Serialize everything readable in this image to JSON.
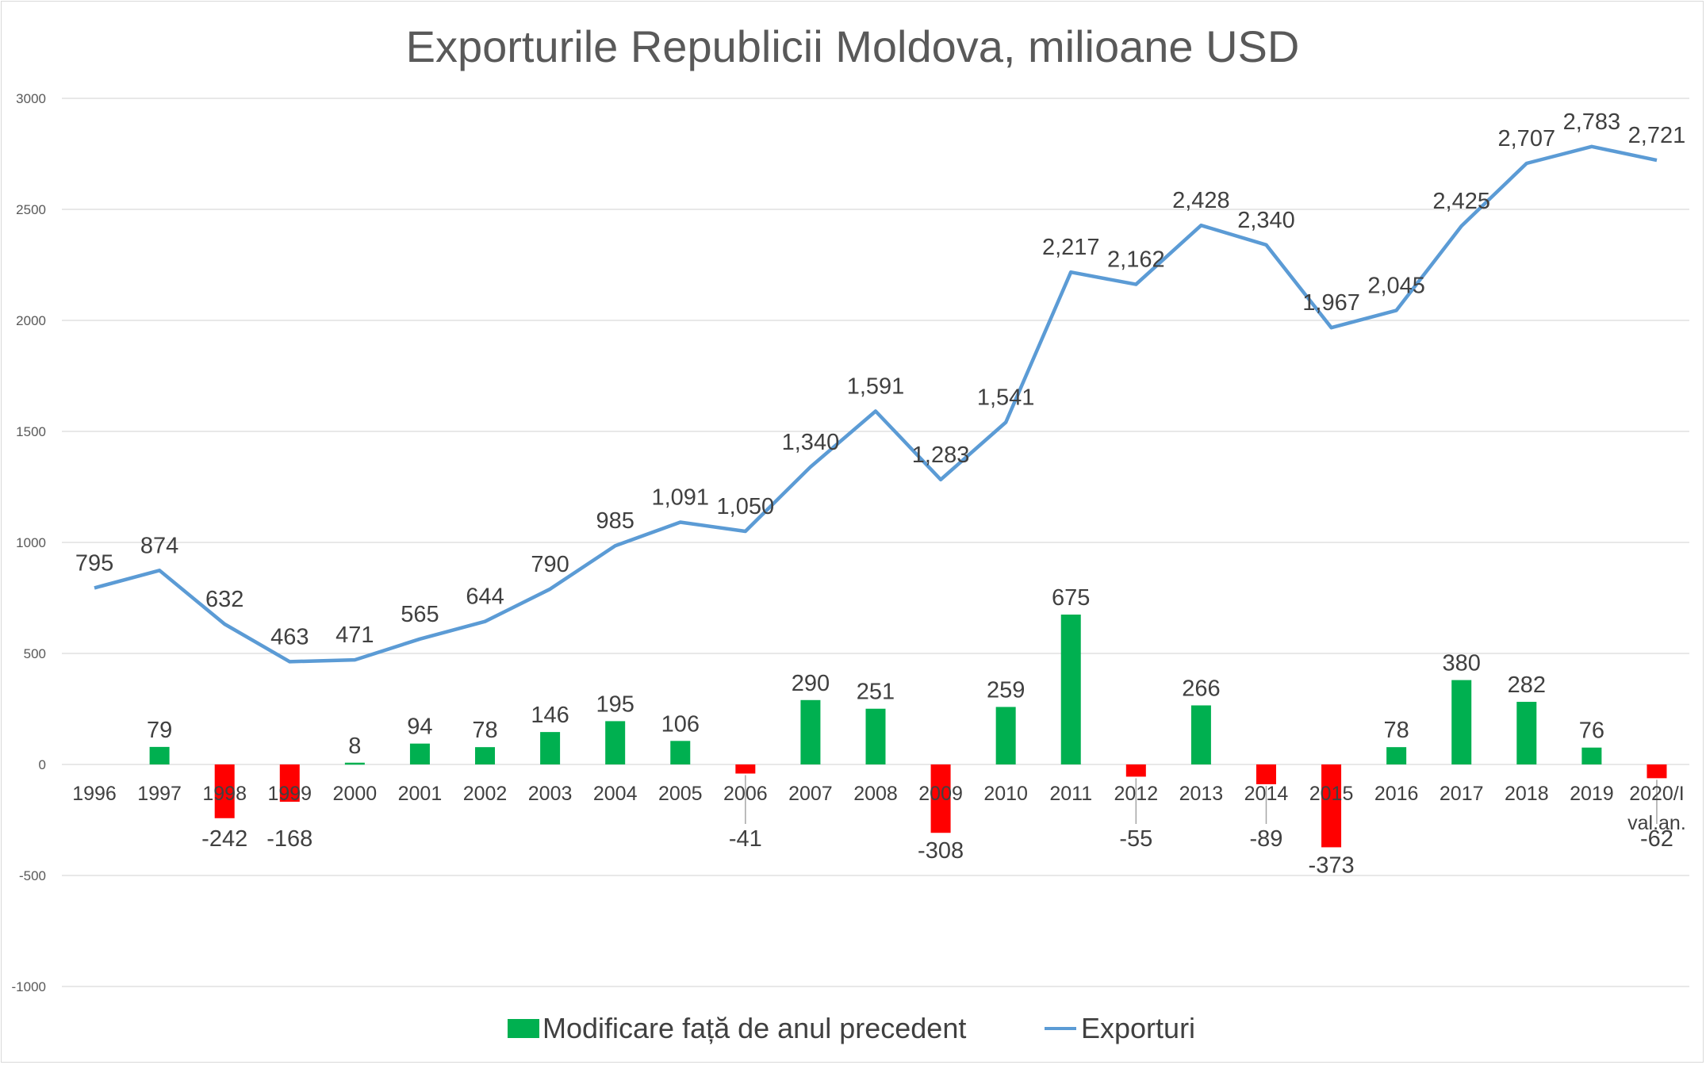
{
  "chart_data": {
    "type": "bar+line",
    "title": "Exporturile Republicii Moldova, milioane USD",
    "categories": [
      "1996",
      "1997",
      "1998",
      "1999",
      "2000",
      "2001",
      "2002",
      "2003",
      "2004",
      "2005",
      "2006",
      "2007",
      "2008",
      "2009",
      "2010",
      "2011",
      "2012",
      "2013",
      "2014",
      "2015",
      "2016",
      "2017",
      "2018",
      "2019",
      "2020/I"
    ],
    "category_sublabels": {
      "2020/I": "val.an."
    },
    "series": [
      {
        "name": "Modificare față de anul precedent",
        "type": "bar",
        "values": [
          null,
          79,
          -242,
          -168,
          8,
          94,
          78,
          146,
          195,
          106,
          -41,
          290,
          251,
          -308,
          259,
          675,
          -55,
          266,
          -89,
          -373,
          78,
          380,
          282,
          76,
          -62
        ],
        "labels": [
          "",
          "79",
          "-242",
          "-168",
          "8",
          "94",
          "78",
          "146",
          "195",
          "106",
          "-41",
          "290",
          "251",
          "-308",
          "259",
          "675",
          "-55",
          "266",
          "-89",
          "-373",
          "78",
          "380",
          "282",
          "76",
          "-62"
        ]
      },
      {
        "name": "Exporturi",
        "type": "line",
        "values": [
          795,
          874,
          632,
          463,
          471,
          565,
          644,
          790,
          985,
          1091,
          1050,
          1340,
          1591,
          1283,
          1541,
          2217,
          2162,
          2428,
          2340,
          1967,
          2045,
          2425,
          2707,
          2783,
          2721
        ],
        "labels": [
          "795",
          "874",
          "632",
          "463",
          "471",
          "565",
          "644",
          "790",
          "985",
          "1,091",
          "1,050",
          "1,340",
          "1,591",
          "1,283",
          "1,541",
          "2,217",
          "2,162",
          "2,428",
          "2,340",
          "1,967",
          "2,045",
          "2,425",
          "2,707",
          "2,783",
          "2,721"
        ]
      }
    ],
    "yticks": [
      "3000",
      "2500",
      "2000",
      "1500",
      "1000",
      "500",
      "0",
      "-500",
      "-1000"
    ],
    "ylim": [
      -1000,
      3000
    ],
    "grid": true,
    "legend_position": "bottom",
    "colors": {
      "positive_bar": "#00b050",
      "negative_bar": "#ff0000",
      "line": "#5b9bd5",
      "grid": "#d9d9d9"
    }
  }
}
